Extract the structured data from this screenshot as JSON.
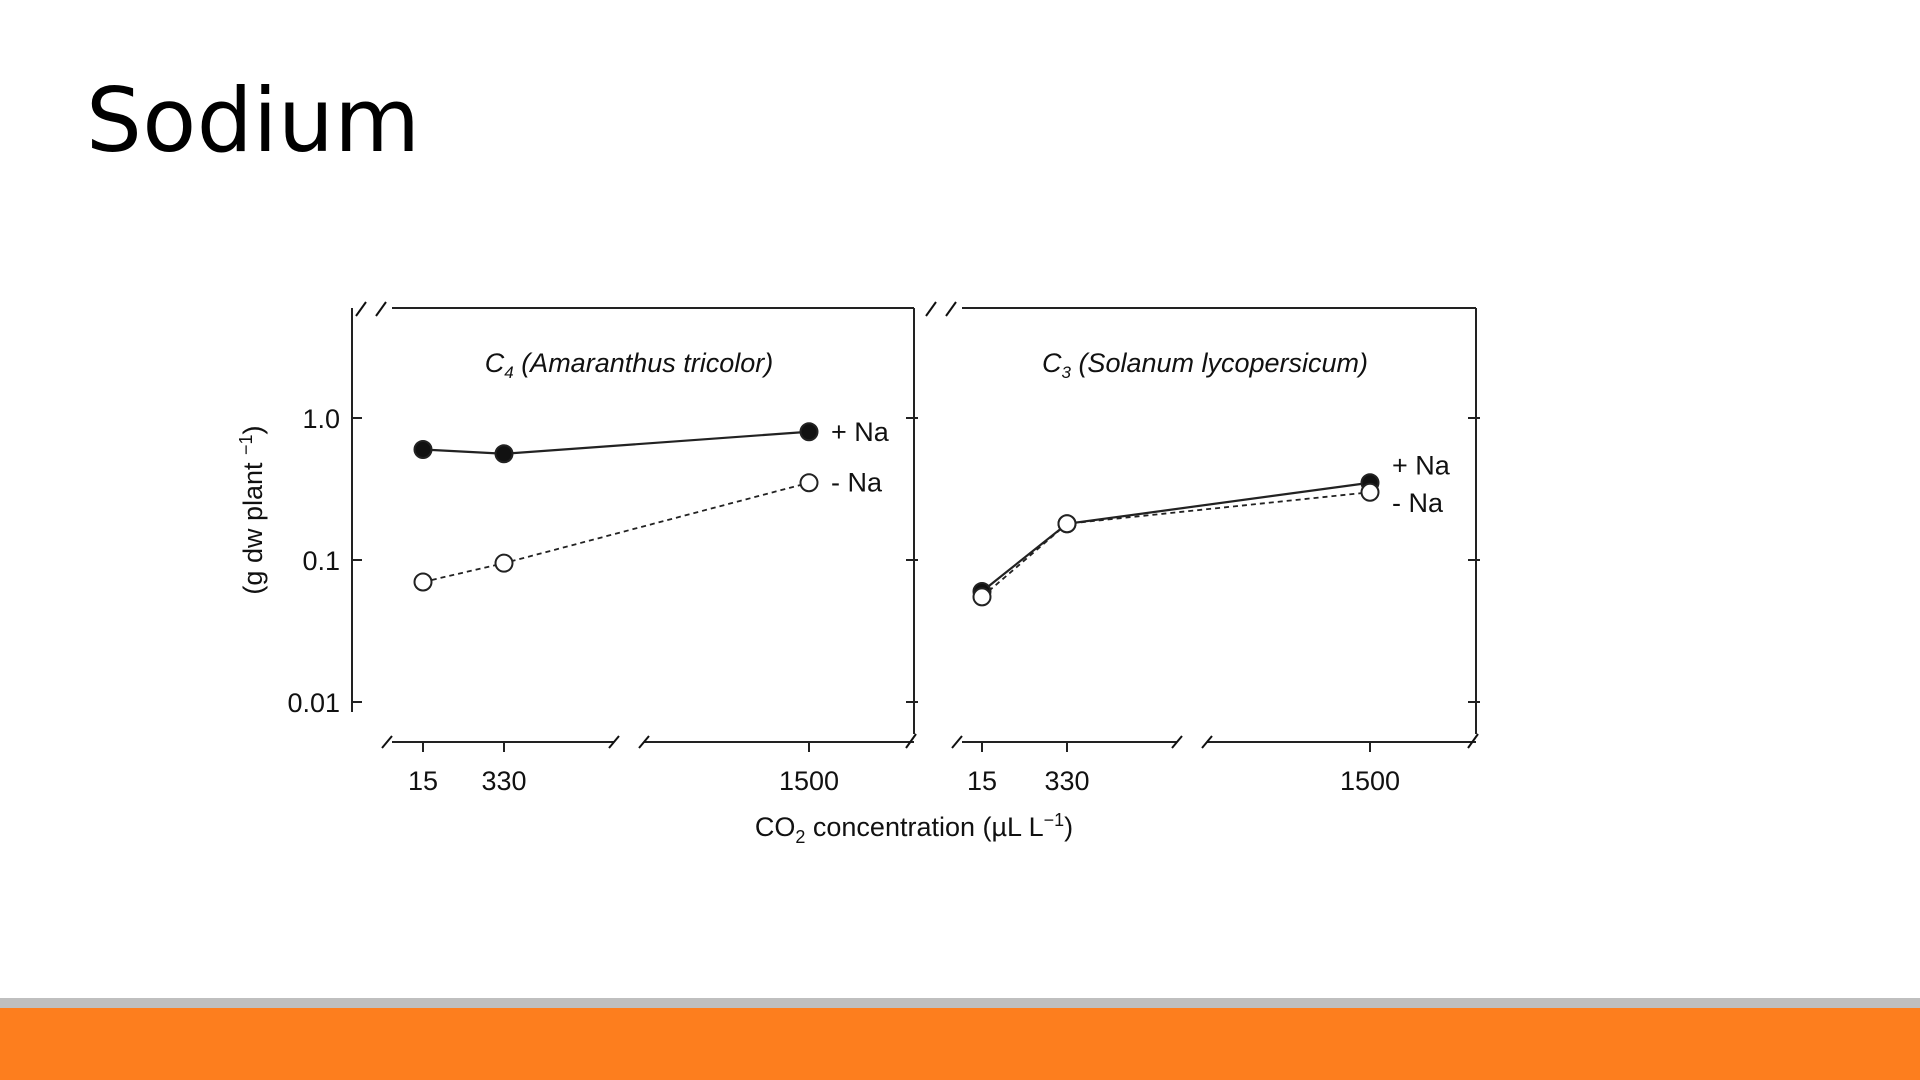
{
  "slide": {
    "title": "Sodium",
    "footer_gray_color": "#bfbfbf",
    "footer_accent_color": "#fd7e1e"
  },
  "chart_data": [
    {
      "type": "line",
      "title": "C4 (Amaranthus tricolor)",
      "title_prefix": "C",
      "title_sub": "4",
      "title_species": "(Amaranthus tricolor)",
      "xlabel": "CO2 concentration (µL L−1)",
      "xlabel_parts": [
        "CO",
        "2",
        " concentration (µL L",
        "−1",
        ")"
      ],
      "ylabel": "(g dw plant −1)",
      "ylabel_parts": [
        "(g dw plant ",
        "−1",
        ")"
      ],
      "y_scale": "log",
      "ylim": [
        0.01,
        1.0
      ],
      "y_ticks": [
        "1.0",
        "0.1",
        "0.01"
      ],
      "x_axis": "broken",
      "x": [
        15,
        330,
        1500
      ],
      "x_tick_labels": [
        "15",
        "330",
        "1500"
      ],
      "series": [
        {
          "name": "+ Na",
          "marker": "filled-circle",
          "line": "solid",
          "values": [
            0.6,
            0.56,
            0.8
          ]
        },
        {
          "name": "- Na",
          "marker": "open-circle",
          "line": "dashed",
          "values": [
            0.07,
            0.095,
            0.35
          ]
        }
      ]
    },
    {
      "type": "line",
      "title": "C3 (Solanum lycopersicum)",
      "title_prefix": "C",
      "title_sub": "3",
      "title_species": "(Solanum lycopersicum)",
      "y_scale": "log",
      "ylim": [
        0.01,
        1.0
      ],
      "x_axis": "broken",
      "x": [
        15,
        330,
        1500
      ],
      "x_tick_labels": [
        "15",
        "330",
        "1500"
      ],
      "series": [
        {
          "name": "+ Na",
          "marker": "filled-circle",
          "line": "solid",
          "values": [
            0.06,
            0.18,
            0.35
          ]
        },
        {
          "name": "- Na",
          "marker": "open-circle",
          "line": "dashed",
          "values": [
            0.055,
            0.18,
            0.3
          ]
        }
      ]
    }
  ]
}
